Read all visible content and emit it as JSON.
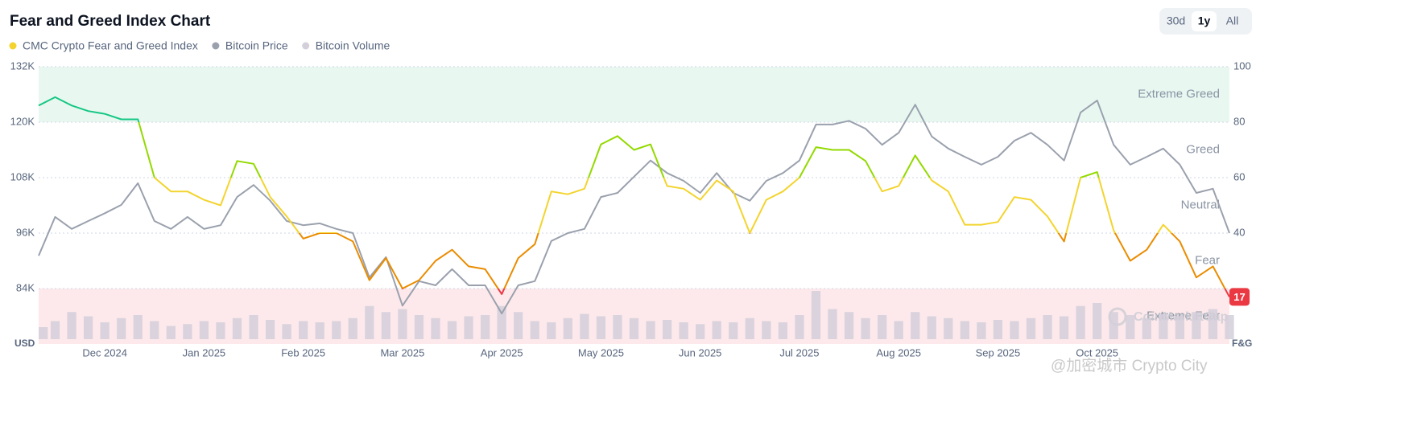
{
  "chart_data": {
    "type": "line",
    "title": "Fear and Greed Index Chart",
    "categories": [
      null,
      null,
      null,
      null,
      "Dec 2024",
      null,
      null,
      null,
      null,
      null,
      "Jan 2025",
      null,
      null,
      null,
      null,
      null,
      "Feb 2025",
      null,
      null,
      null,
      null,
      null,
      "Mar 2025",
      null,
      null,
      null,
      null,
      null,
      "Apr 2025",
      null,
      null,
      null,
      null,
      null,
      "May 2025",
      null,
      null,
      null,
      null,
      null,
      "Jun 2025",
      null,
      null,
      null,
      null,
      null,
      "Jul 2025",
      null,
      null,
      null,
      null,
      null,
      "Aug 2025",
      null,
      null,
      null,
      null,
      null,
      "Sep 2025",
      null,
      null,
      null,
      null,
      null,
      "Oct 2025",
      null,
      null,
      null,
      null,
      null,
      null,
      null,
      null
    ],
    "series": [
      {
        "name": "CMC Crypto Fear and Greed Index",
        "type": "line",
        "axis": "y2",
        "color": "#f3d42f",
        "values": [
          86,
          89,
          86,
          84,
          83,
          81,
          81,
          60,
          55,
          55,
          52,
          50,
          66,
          65,
          53,
          46,
          38,
          40,
          40,
          37,
          23,
          31,
          20,
          23,
          30,
          34,
          28,
          27,
          18,
          31,
          36,
          55,
          54,
          56,
          72,
          75,
          70,
          72,
          57,
          56,
          52,
          59,
          55,
          40,
          52,
          55,
          60,
          71,
          70,
          70,
          66,
          55,
          57,
          68,
          59,
          55,
          43,
          43,
          44,
          53,
          52,
          46,
          37,
          60,
          62,
          41,
          30,
          34,
          43,
          37,
          24,
          28,
          17
        ]
      },
      {
        "name": "Bitcoin Price",
        "type": "line",
        "axis": "y",
        "color": "#9aa1ad",
        "values": [
          91100,
          99500,
          96900,
          98600,
          100300,
          102100,
          106800,
          98600,
          96900,
          99500,
          96900,
          97700,
          103800,
          106400,
          103000,
          98600,
          97700,
          98100,
          96900,
          96000,
          86400,
          90800,
          80300,
          85600,
          84700,
          88200,
          84700,
          84700,
          78600,
          84700,
          85600,
          94300,
          96000,
          96900,
          103800,
          104700,
          108200,
          111700,
          109000,
          107300,
          104700,
          109000,
          104700,
          103000,
          107300,
          109000,
          111700,
          119500,
          119500,
          120300,
          118600,
          115100,
          117700,
          123800,
          116900,
          114300,
          112500,
          110800,
          112500,
          116000,
          117700,
          115100,
          111700,
          122100,
          124700,
          115100,
          110800,
          112500,
          114300,
          110800,
          104700,
          105600,
          96000
        ]
      },
      {
        "name": "Bitcoin Volume",
        "type": "bar",
        "axis": "volume",
        "color": "#d3cfdb",
        "values": [
          20,
          30,
          45,
          38,
          28,
          35,
          40,
          30,
          22,
          25,
          30,
          28,
          35,
          40,
          32,
          25,
          30,
          28,
          30,
          35,
          55,
          45,
          50,
          40,
          35,
          30,
          38,
          40,
          55,
          45,
          30,
          28,
          35,
          42,
          38,
          40,
          35,
          30,
          32,
          28,
          25,
          30,
          28,
          35,
          30,
          28,
          40,
          80,
          50,
          45,
          35,
          40,
          30,
          45,
          38,
          35,
          30,
          28,
          32,
          30,
          35,
          40,
          38,
          55,
          60,
          45,
          40,
          35,
          42,
          38,
          45,
          50,
          40
        ]
      }
    ],
    "ylim": [
      72000,
      132000
    ],
    "yticks": [
      {
        "value": 84000,
        "label": "84K"
      },
      {
        "value": 96000,
        "label": "96K"
      },
      {
        "value": 108000,
        "label": "108K"
      },
      {
        "value": 120000,
        "label": "120K"
      },
      {
        "value": 132000,
        "label": "132K"
      }
    ],
    "y2lim": [
      0,
      100
    ],
    "y2ticks": [
      40,
      60,
      80,
      100
    ],
    "y_label": "USD",
    "y2_label": "F&G",
    "grid": true,
    "zones": [
      {
        "label": "Extreme Fear",
        "from": 0,
        "to": 20,
        "color": "#ea3943",
        "band": "#fde9eb"
      },
      {
        "label": "Fear",
        "from": 20,
        "to": 40,
        "color": "#ea8c00"
      },
      {
        "label": "Neutral",
        "from": 40,
        "to": 60,
        "color": "#f3d42f"
      },
      {
        "label": "Greed",
        "from": 60,
        "to": 80,
        "color": "#93d900"
      },
      {
        "label": "Extreme Greed",
        "from": 80,
        "to": 100,
        "color": "#16c784",
        "band": "#e8f8f1"
      }
    ]
  },
  "controls": {
    "range_buttons": [
      {
        "label": "30d"
      },
      {
        "label": "1y",
        "active": true
      },
      {
        "label": "All"
      }
    ]
  },
  "watermarks": [
    "CoinMarketCap",
    "@加密城市 Crypto City"
  ]
}
